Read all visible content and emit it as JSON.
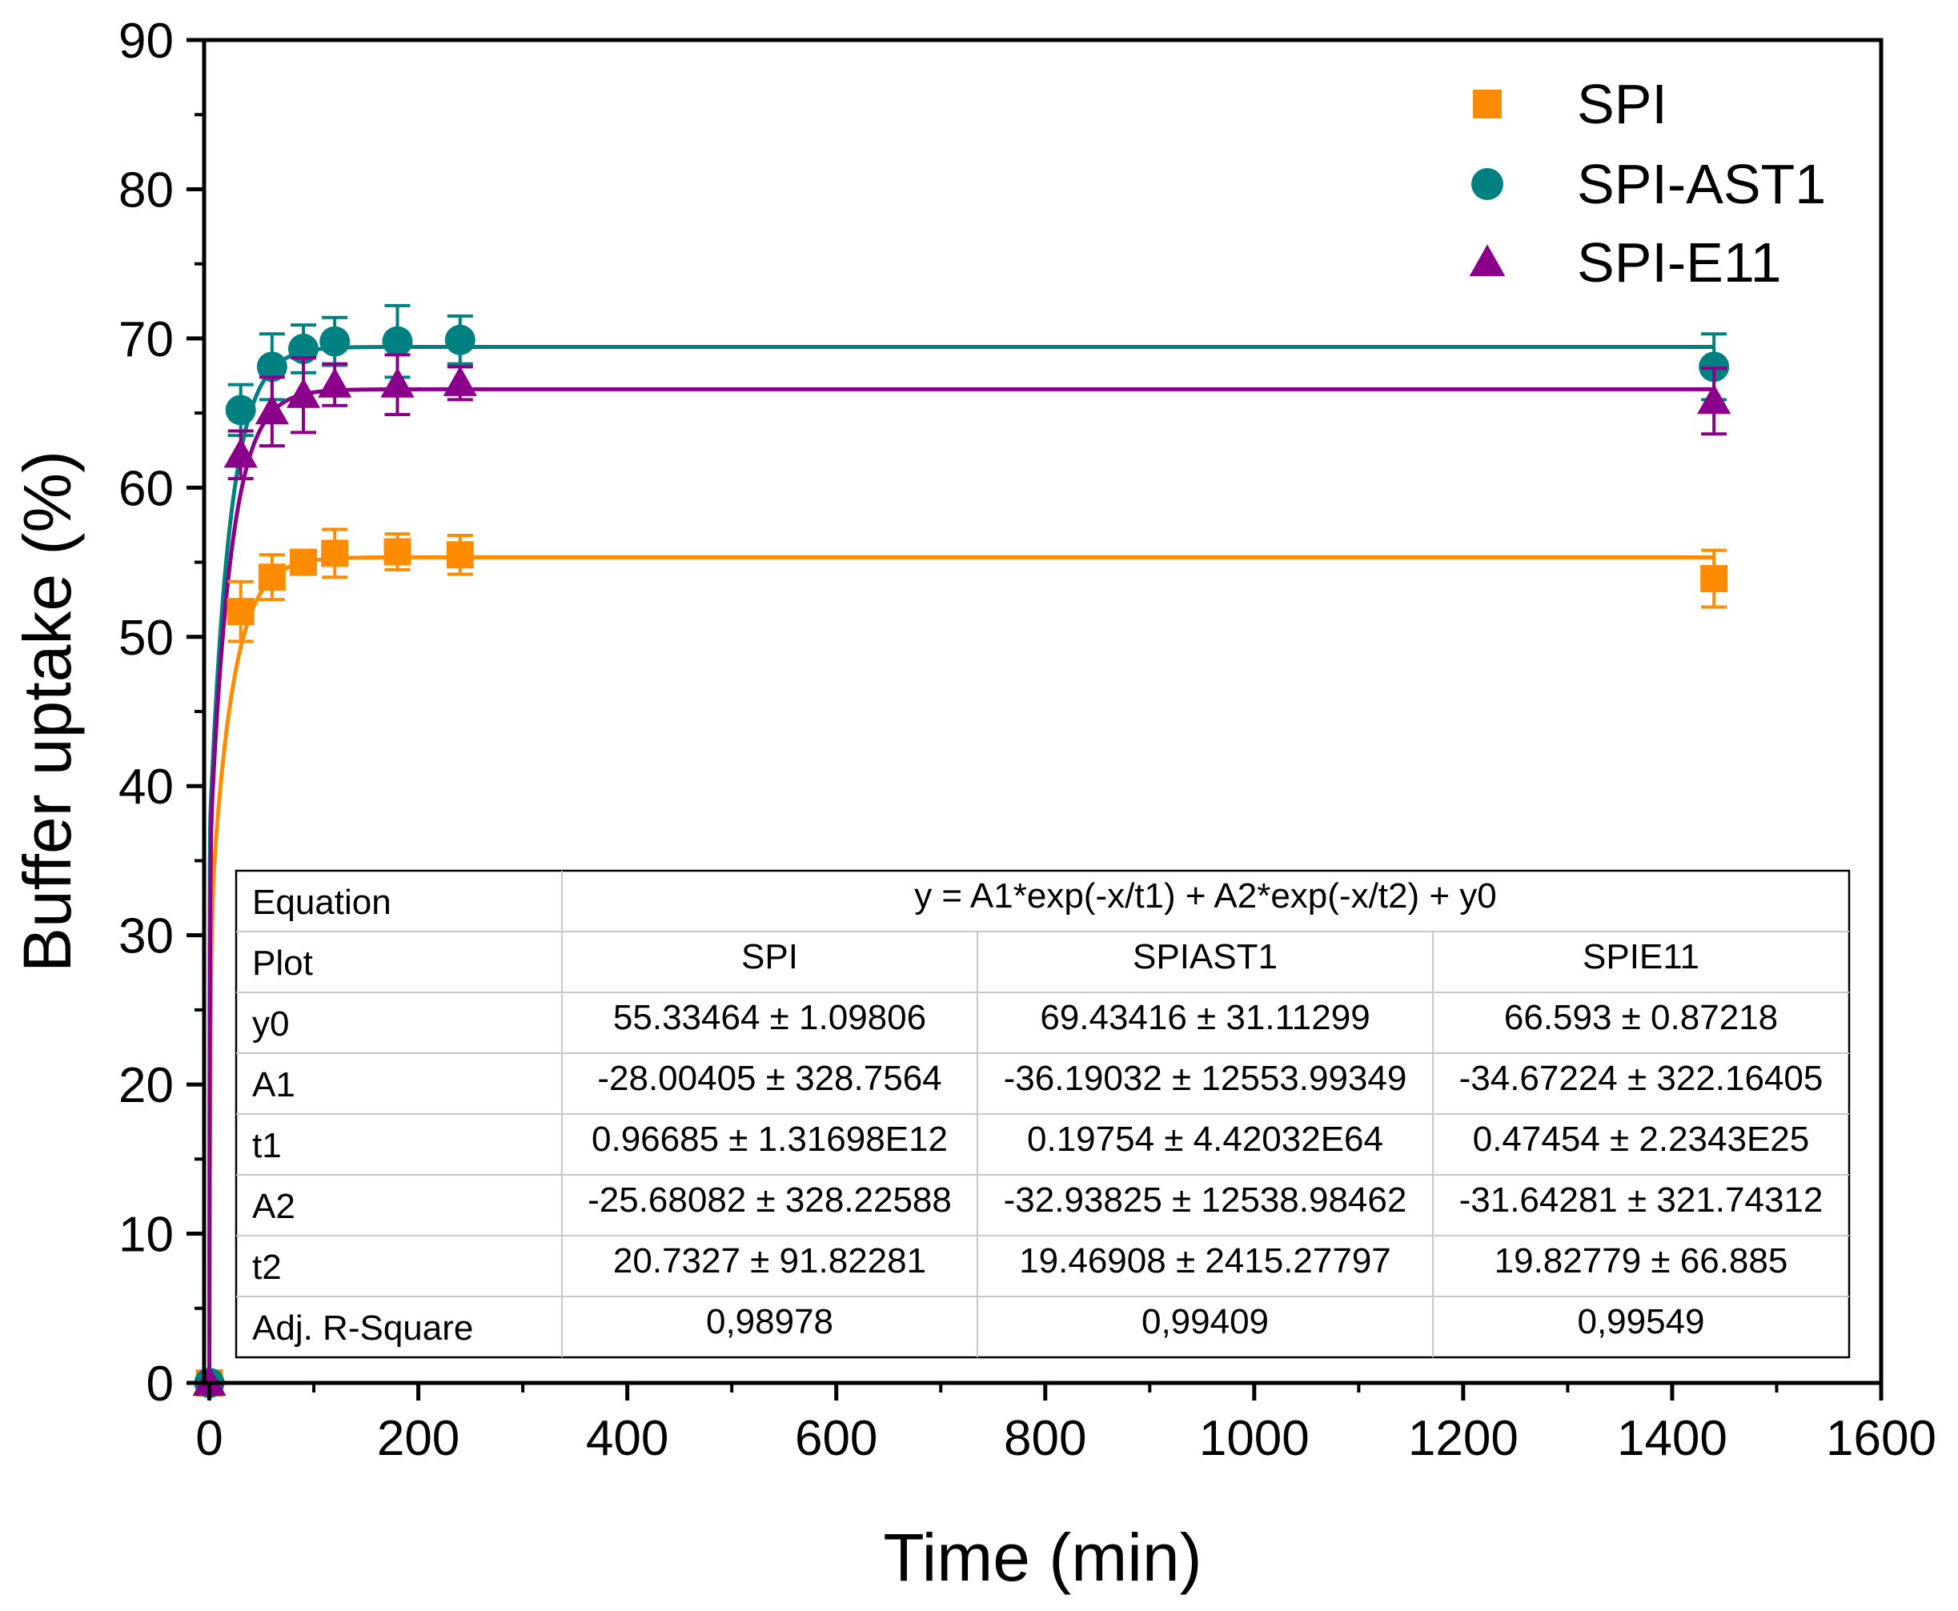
{
  "chart_data": {
    "type": "scatter",
    "xlabel": "Time (min)",
    "ylabel": "Buffer uptake (%)",
    "xlim": [
      -5,
      1600
    ],
    "ylim": [
      0,
      90
    ],
    "x_ticks": [
      0,
      200,
      400,
      600,
      800,
      1000,
      1200,
      1400,
      1600
    ],
    "y_ticks": [
      0,
      10,
      20,
      30,
      40,
      50,
      60,
      70,
      80,
      90
    ],
    "x_tick_labels": [
      "0",
      "200",
      "400",
      "600",
      "800",
      "1000",
      "1200",
      "1400",
      "1600"
    ],
    "y_tick_labels": [
      "0",
      "10",
      "20",
      "30",
      "40",
      "50",
      "60",
      "70",
      "80",
      "90"
    ],
    "legend_position": "top-right",
    "fit_model": "y = A1*exp(-x/t1) + A2*exp(-x/t2) + y0",
    "series": [
      {
        "name": "SPI",
        "marker": "square",
        "color": "#FF8C00",
        "x": [
          0,
          30,
          60,
          90,
          120,
          180,
          240,
          1440
        ],
        "y": [
          0,
          51.7,
          54.0,
          55.0,
          55.6,
          55.7,
          55.5,
          53.9
        ],
        "err": [
          0,
          2.0,
          1.5,
          0.7,
          1.6,
          1.2,
          1.3,
          1.9
        ],
        "fit": {
          "y0": 55.33464,
          "A1": -28.00405,
          "t1": 0.96685,
          "A2": -25.68082,
          "t2": 20.7327
        }
      },
      {
        "name": "SPI-AST1",
        "marker": "circle",
        "color": "#008080",
        "x": [
          0,
          30,
          60,
          90,
          120,
          180,
          240,
          1440
        ],
        "y": [
          0,
          65.2,
          68.1,
          69.3,
          69.8,
          69.8,
          69.9,
          68.1
        ],
        "err": [
          0,
          1.7,
          2.2,
          1.6,
          1.6,
          2.4,
          1.6,
          2.2
        ],
        "fit": {
          "y0": 69.43416,
          "A1": -36.19032,
          "t1": 0.19754,
          "A2": -32.93825,
          "t2": 19.46908
        }
      },
      {
        "name": "SPI-E11",
        "marker": "triangle",
        "color": "#8B008B",
        "x": [
          0,
          30,
          60,
          90,
          120,
          180,
          240,
          1440
        ],
        "y": [
          0,
          62.2,
          65.1,
          66.2,
          66.9,
          66.9,
          67.0,
          65.8
        ],
        "err": [
          0,
          1.6,
          2.3,
          2.5,
          1.4,
          2.0,
          1.1,
          2.2
        ],
        "fit": {
          "y0": 66.593,
          "A1": -34.67224,
          "t1": 0.47454,
          "A2": -31.64281,
          "t2": 19.82779
        }
      }
    ],
    "fit_table": {
      "equation_label": "Equation",
      "equation": "y = A1*exp(-x/t1) + A2*exp(-x/t2) + y0",
      "rows": [
        {
          "label": "Plot",
          "values": [
            "SPI",
            "SPIAST1",
            "SPIE11"
          ]
        },
        {
          "label": "y0",
          "values": [
            "55.33464 ± 1.09806",
            "69.43416 ± 31.11299",
            "66.593 ± 0.87218"
          ]
        },
        {
          "label": "A1",
          "values": [
            "-28.00405 ± 328.7564",
            "-36.19032 ± 12553.99349",
            "-34.67224 ± 322.16405"
          ]
        },
        {
          "label": "t1",
          "values": [
            "0.96685 ± 1.31698E12",
            "0.19754 ± 4.42032E64",
            "0.47454 ± 2.2343E25"
          ]
        },
        {
          "label": "A2",
          "values": [
            "-25.68082 ± 328.22588",
            "-32.93825 ± 12538.98462",
            "-31.64281 ± 321.74312"
          ]
        },
        {
          "label": "t2",
          "values": [
            "20.7327 ± 91.82281",
            "19.46908 ± 2415.27797",
            "19.82779 ± 66.885"
          ]
        },
        {
          "label": "Adj. R-Square",
          "values": [
            "0,98978",
            "0,99409",
            "0,99549"
          ]
        }
      ]
    }
  }
}
